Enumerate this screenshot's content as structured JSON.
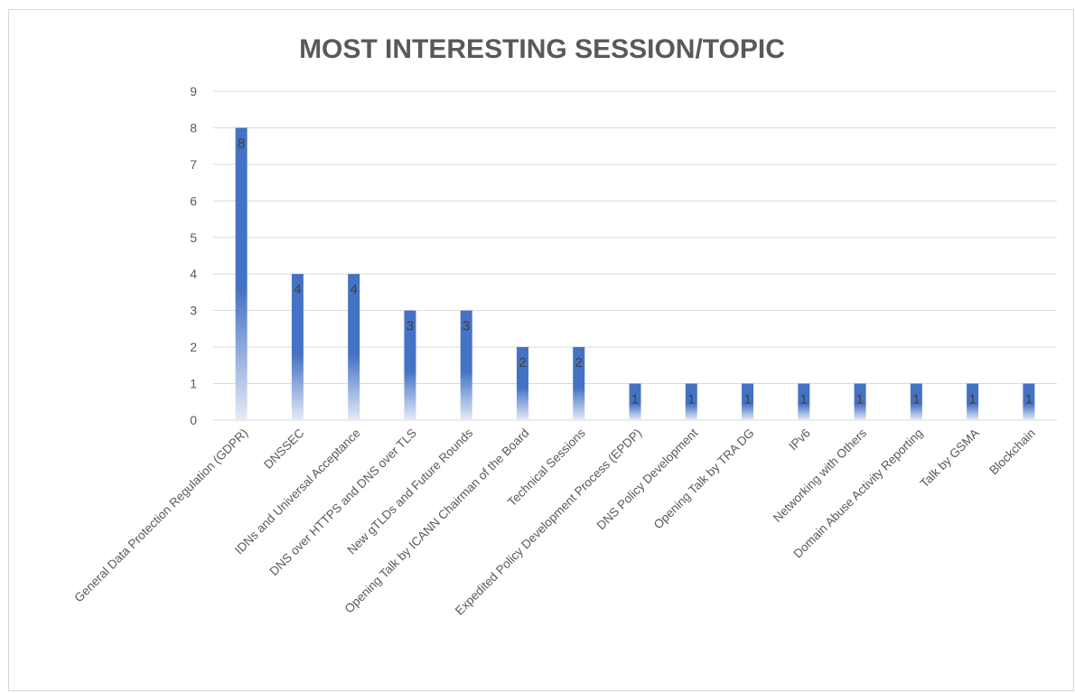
{
  "chart_data": {
    "type": "bar",
    "title": "MOST INTERESTING SESSION/TOPIC",
    "categories": [
      "General Data Protection Regulation (GDPR)",
      "DNSSEC",
      "IDNs and Universal Acceptance",
      "DNS over HTTPS and DNS over TLS",
      "New gTLDs and Future Rounds",
      "Opening Talk by ICANN Chairman of the Board",
      "Technical Sessions",
      "Expedited Policy Development Process (EPDP)",
      "DNS Policy Development",
      "Opening Talk by TRA DG",
      "IPv6",
      "Networking with Others",
      "Domain Abuse Activity Reporting",
      "Talk by GSMA",
      "Blockchain"
    ],
    "values": [
      8,
      4,
      4,
      3,
      3,
      2,
      2,
      1,
      1,
      1,
      1,
      1,
      1,
      1,
      1
    ],
    "ylim": [
      0,
      9
    ],
    "yticks": [
      0,
      1,
      2,
      3,
      4,
      5,
      6,
      7,
      8,
      9
    ],
    "grid": true,
    "data_labels": true,
    "bar_color_top": "#4472c4",
    "bar_color_bottom": "#e4ebf7",
    "grid_color": "#d9d9d9",
    "text_color": "#595959"
  }
}
